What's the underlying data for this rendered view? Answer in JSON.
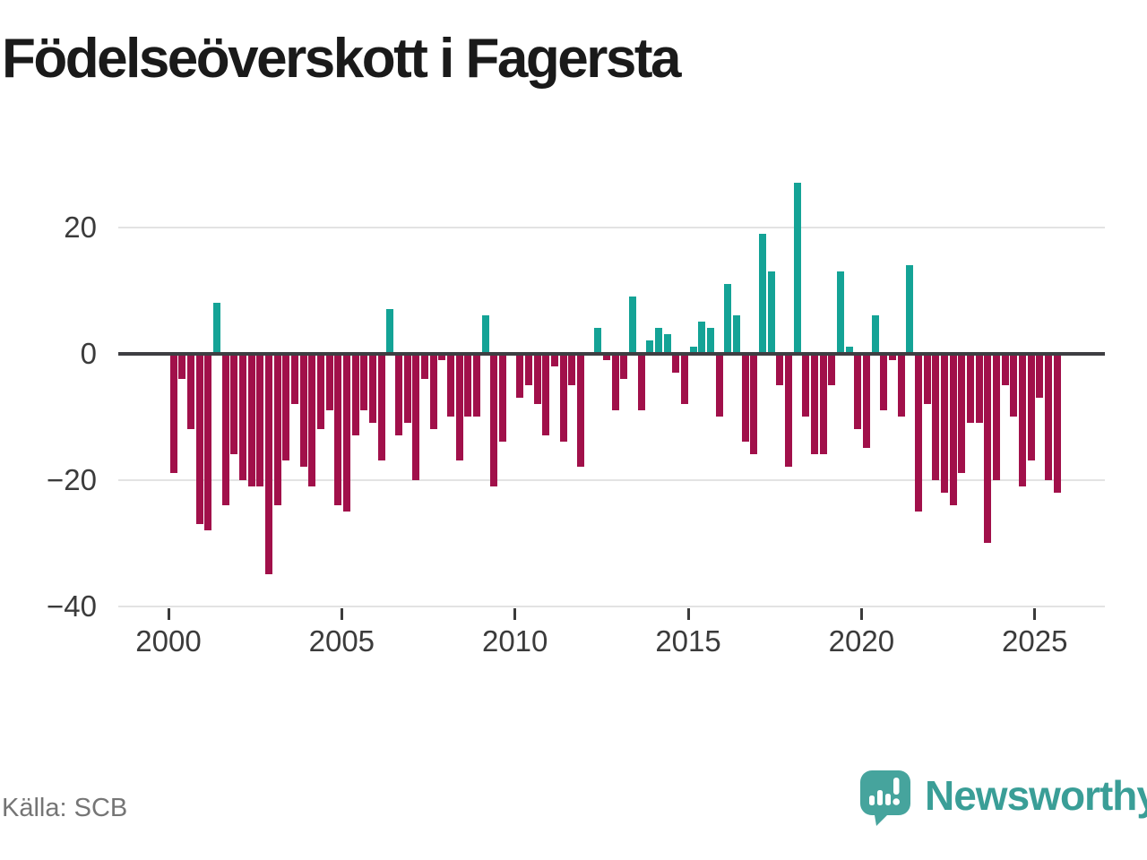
{
  "title": "Födelseöverskott i Fagersta",
  "source": "Källa: SCB",
  "logo": {
    "text": "Newsworthy",
    "icon": "newsworthy-speech-bubble-chart-icon"
  },
  "colors": {
    "positive_bar": "#14a396",
    "negative_bar": "#a1104a",
    "axis_text": "#3b3b3b",
    "gridline": "#e3e3e3",
    "zero_line": "#3e3e42",
    "title_text": "#1a1a1a",
    "source_text": "#757575",
    "logo_teal": "#46a49d"
  },
  "chart_data": {
    "type": "bar",
    "title": "Födelseöverskott i Fagersta",
    "xlabel": "",
    "ylabel": "",
    "grid": "horizontal",
    "legend": "none",
    "ylim": [
      -40,
      28
    ],
    "y_ticks": [
      20,
      0,
      -20,
      -40
    ],
    "y_tick_labels": [
      "20",
      "0",
      "−20",
      "−40"
    ],
    "x_tick_years": [
      2000,
      2005,
      2010,
      2015,
      2020,
      2025
    ],
    "x_tick_labels": [
      "2000",
      "2005",
      "2010",
      "2015",
      "2020",
      "2025"
    ],
    "x": [
      "2000Q1",
      "2000Q2",
      "2000Q3",
      "2000Q4",
      "2001Q1",
      "2001Q2",
      "2001Q3",
      "2001Q4",
      "2002Q1",
      "2002Q2",
      "2002Q3",
      "2002Q4",
      "2003Q1",
      "2003Q2",
      "2003Q3",
      "2003Q4",
      "2004Q1",
      "2004Q2",
      "2004Q3",
      "2004Q4",
      "2005Q1",
      "2005Q2",
      "2005Q3",
      "2005Q4",
      "2006Q1",
      "2006Q2",
      "2006Q3",
      "2006Q4",
      "2007Q1",
      "2007Q2",
      "2007Q3",
      "2007Q4",
      "2008Q1",
      "2008Q2",
      "2008Q3",
      "2008Q4",
      "2009Q1",
      "2009Q2",
      "2009Q3",
      "2009Q4",
      "2010Q1",
      "2010Q2",
      "2010Q3",
      "2010Q4",
      "2011Q1",
      "2011Q2",
      "2011Q3",
      "2011Q4",
      "2012Q1",
      "2012Q2",
      "2012Q3",
      "2012Q4",
      "2013Q1",
      "2013Q2",
      "2013Q3",
      "2013Q4",
      "2014Q1",
      "2014Q2",
      "2014Q3",
      "2014Q4",
      "2015Q1",
      "2015Q2",
      "2015Q3",
      "2015Q4",
      "2016Q1",
      "2016Q2",
      "2016Q3",
      "2016Q4",
      "2017Q1",
      "2017Q2",
      "2017Q3",
      "2017Q4",
      "2018Q1",
      "2018Q2",
      "2018Q3",
      "2018Q4",
      "2019Q1",
      "2019Q2",
      "2019Q3",
      "2019Q4",
      "2020Q1",
      "2020Q2",
      "2020Q3",
      "2020Q4",
      "2021Q1",
      "2021Q2",
      "2021Q3",
      "2021Q4",
      "2022Q1",
      "2022Q2",
      "2022Q3",
      "2022Q4",
      "2023Q1",
      "2023Q2",
      "2023Q3",
      "2023Q4",
      "2024Q1",
      "2024Q2",
      "2024Q3",
      "2024Q4",
      "2025Q1",
      "2025Q2",
      "2025Q3"
    ],
    "values": [
      -19,
      -4,
      -12,
      -27,
      -28,
      8,
      -24,
      -16,
      -20,
      -21,
      -21,
      -35,
      -24,
      -17,
      -8,
      -18,
      -21,
      -12,
      -9,
      -24,
      -25,
      -13,
      -9,
      -11,
      -17,
      7,
      -13,
      -11,
      -20,
      -4,
      -12,
      -1,
      -10,
      -17,
      -10,
      -10,
      6,
      -21,
      -14,
      0,
      -7,
      -5,
      -8,
      -13,
      -2,
      -14,
      -5,
      -18,
      0,
      4,
      -1,
      -9,
      -4,
      9,
      -9,
      2,
      4,
      3,
      -3,
      -8,
      1,
      5,
      4,
      -10,
      11,
      6,
      -14,
      -16,
      19,
      13,
      -5,
      -18,
      27,
      -10,
      -16,
      -16,
      -5,
      13,
      1,
      -12,
      -15,
      6,
      -9,
      -1,
      -10,
      14,
      -25,
      -8,
      -20,
      -22,
      -24,
      -19,
      -11,
      -11,
      -30,
      -20,
      -5,
      -10,
      -21,
      -17,
      -7,
      -20,
      -22
    ]
  }
}
